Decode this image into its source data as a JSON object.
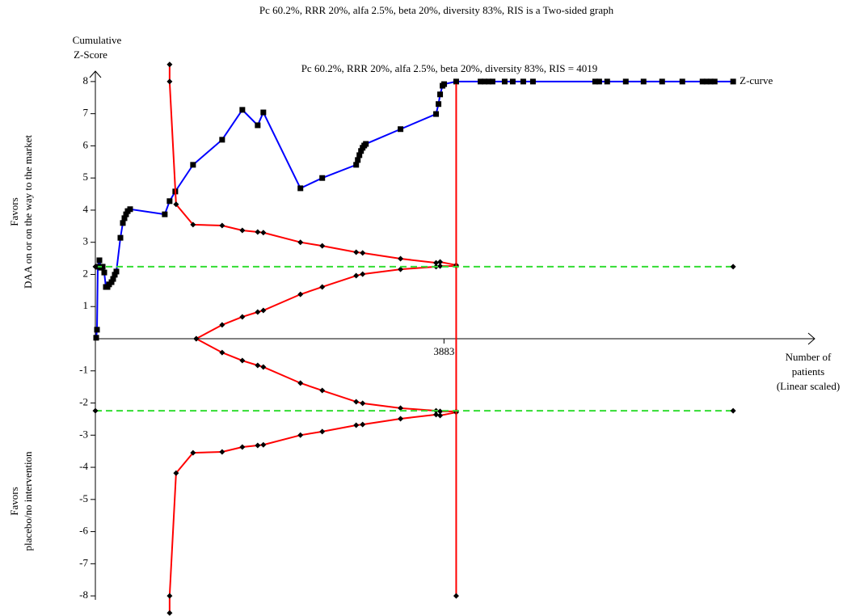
{
  "chart_data": {
    "type": "line",
    "title": "Pc 60.2%, RRR 20%, alfa 2.5%, beta 20%, diversity 83%, RIS is a Two-sided graph",
    "annotation": "Pc 60.2%, RRR 20%, alfa 2.5%, beta 20%, diversity 83%, RIS = 4019",
    "annotation_color": "#ff0000",
    "y_label": [
      "Cumulative",
      "Z-Score"
    ],
    "upper_label": [
      "Favors",
      "DAA on or on the way to the market"
    ],
    "lower_label": [
      "Favors",
      "placebo/no intervention"
    ],
    "x_label": [
      "Number of",
      "patients",
      "(Linear scaled)"
    ],
    "xlim": [
      0,
      7940
    ],
    "ylim": [
      -8.5,
      8.5
    ],
    "xticks": [
      3883
    ],
    "yticks": [
      -8,
      -7,
      -6,
      -5,
      -4,
      -3,
      -2,
      -1,
      1,
      2,
      3,
      4,
      5,
      6,
      7,
      8
    ],
    "series": [
      {
        "name": "Z-curve",
        "color": "#0000ff",
        "marker": "square",
        "marker_color": "#000000",
        "x": [
          9,
          18,
          27,
          45,
          63,
          81,
          99,
          117,
          135,
          153,
          180,
          198,
          216,
          234,
          279,
          306,
          324,
          342,
          360,
          387,
          773,
          827,
          890,
          1088,
          1412,
          1637,
          1808,
          1871,
          2284,
          2527,
          2905,
          2923,
          2941,
          2959,
          2977,
          2995,
          3013,
          3399,
          3795,
          3822,
          3840,
          3867,
          3885,
          4019,
          4290,
          4335,
          4380,
          4424,
          4559,
          4649,
          4766,
          4874,
          5567,
          5612,
          5701,
          5908,
          6106,
          6313,
          6538,
          6763,
          6808,
          6853,
          6898,
          7104
        ],
        "values": [
          0.03,
          0.28,
          2.24,
          2.44,
          2.21,
          2.24,
          2.06,
          1.61,
          1.61,
          1.69,
          1.76,
          1.86,
          1.99,
          2.09,
          3.14,
          3.6,
          3.75,
          3.87,
          3.97,
          4.03,
          3.87,
          4.28,
          4.58,
          5.41,
          6.19,
          7.12,
          6.64,
          7.04,
          4.68,
          5.0,
          5.41,
          5.56,
          5.71,
          5.84,
          5.94,
          6.01,
          6.06,
          6.52,
          6.99,
          7.3,
          7.6,
          7.87,
          7.92,
          8,
          8,
          8,
          8,
          8,
          8,
          8,
          8,
          8,
          8,
          8,
          8,
          8,
          8,
          8,
          8,
          8,
          8,
          8,
          8,
          8
        ]
      },
      {
        "color": "#ff0000",
        "marker": "diamond",
        "marker_color": "#000000",
        "x": [
          827,
          827,
          899,
          1088,
          1412,
          1637,
          1808,
          1871,
          2284,
          2527,
          2905,
          2977,
          3399,
          3795,
          3840,
          4019
        ],
        "values": [
          8.53,
          8,
          4.18,
          3.55,
          3.52,
          3.37,
          3.32,
          3.3,
          3.0,
          2.89,
          2.69,
          2.67,
          2.49,
          2.36,
          2.39,
          2.29
        ]
      },
      {
        "color": "#ff0000",
        "marker": "diamond",
        "marker_color": "#000000",
        "x": [
          827,
          827,
          899,
          1088,
          1412,
          1637,
          1808,
          1871,
          2284,
          2527,
          2905,
          2977,
          3399,
          3795,
          3840,
          4019
        ],
        "values": [
          -8.53,
          -8,
          -4.18,
          -3.55,
          -3.52,
          -3.37,
          -3.32,
          -3.3,
          -3.0,
          -2.89,
          -2.69,
          -2.67,
          -2.49,
          -2.36,
          -2.39,
          -2.29
        ]
      },
      {
        "color": "#ff0000",
        "marker": "diamond",
        "marker_color": "#000000",
        "x": [
          1124,
          1412,
          1637,
          1808,
          1871,
          2284,
          2527,
          2905,
          2977,
          3399,
          3795,
          3840,
          4019
        ],
        "values": [
          0,
          0.43,
          0.68,
          0.83,
          0.88,
          1.38,
          1.61,
          1.96,
          2.01,
          2.16,
          2.24,
          2.26,
          2.26
        ]
      },
      {
        "color": "#ff0000",
        "marker": "diamond",
        "marker_color": "#000000",
        "x": [
          1124,
          1412,
          1637,
          1808,
          1871,
          2284,
          2527,
          2905,
          2977,
          3399,
          3795,
          3840,
          4019
        ],
        "values": [
          0,
          -0.43,
          -0.68,
          -0.83,
          -0.88,
          -1.38,
          -1.61,
          -1.96,
          -2.01,
          -2.16,
          -2.24,
          -2.26,
          -2.26
        ]
      },
      {
        "color": "#ff0000",
        "marker": "diamond",
        "marker_color": "#000000",
        "x": [
          4019,
          4019
        ],
        "values": [
          8,
          -8
        ]
      },
      {
        "color": "#33dd33",
        "dash": true,
        "marker": "diamond",
        "marker_color": "#000000",
        "x": [
          0,
          7104
        ],
        "values": [
          2.24,
          2.24
        ]
      },
      {
        "color": "#33dd33",
        "dash": true,
        "marker": "diamond",
        "marker_color": "#000000",
        "x": [
          0,
          7104
        ],
        "values": [
          -2.24,
          -2.24
        ]
      }
    ]
  }
}
